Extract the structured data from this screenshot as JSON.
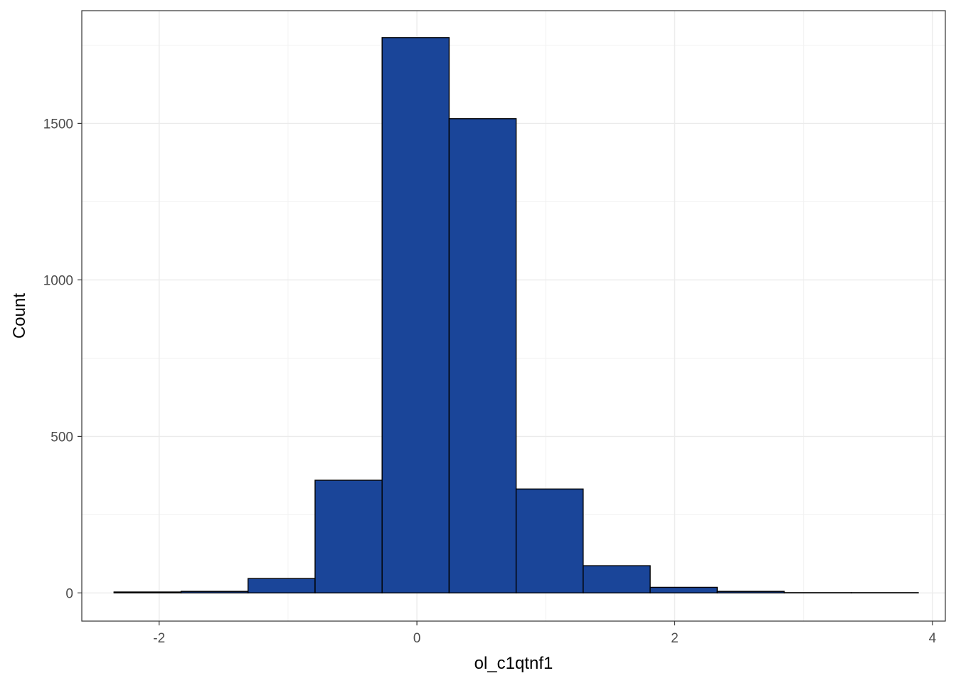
{
  "chart_data": {
    "type": "bar",
    "subtype": "histogram",
    "xlabel": "ol_c1qtnf1",
    "ylabel": "Count",
    "xlim": [
      -2.6,
      4.1
    ],
    "ylim": [
      -90,
      1860
    ],
    "x_ticks": [
      -2,
      0,
      2,
      4
    ],
    "x_tick_labels": [
      "-2",
      "0",
      "2",
      "4"
    ],
    "y_ticks": [
      0,
      500,
      1000,
      1500
    ],
    "y_tick_labels": [
      "0",
      "500",
      "1000",
      "1500"
    ],
    "grid": true,
    "legend": "none",
    "bin_width": 0.52,
    "bins": [
      {
        "x0": -2.35,
        "x1": -1.83,
        "count": 3
      },
      {
        "x0": -1.83,
        "x1": -1.31,
        "count": 5
      },
      {
        "x0": -1.31,
        "x1": -0.79,
        "count": 46
      },
      {
        "x0": -0.79,
        "x1": -0.27,
        "count": 360
      },
      {
        "x0": -0.27,
        "x1": 0.25,
        "count": 1774
      },
      {
        "x0": 0.25,
        "x1": 0.77,
        "count": 1515
      },
      {
        "x0": 0.77,
        "x1": 1.29,
        "count": 332
      },
      {
        "x0": 1.29,
        "x1": 1.81,
        "count": 87
      },
      {
        "x0": 1.81,
        "x1": 2.33,
        "count": 18
      },
      {
        "x0": 2.33,
        "x1": 2.85,
        "count": 5
      },
      {
        "x0": 2.85,
        "x1": 3.37,
        "count": 1
      },
      {
        "x0": 3.37,
        "x1": 3.89,
        "count": 1
      }
    ],
    "colors": {
      "bar_fill": "#1a4599",
      "bar_stroke": "#000000",
      "grid_major": "#ebebeb",
      "grid_minor": "#f2f2f2",
      "panel_border": "#333333",
      "tick_text": "#4d4d4d"
    }
  }
}
